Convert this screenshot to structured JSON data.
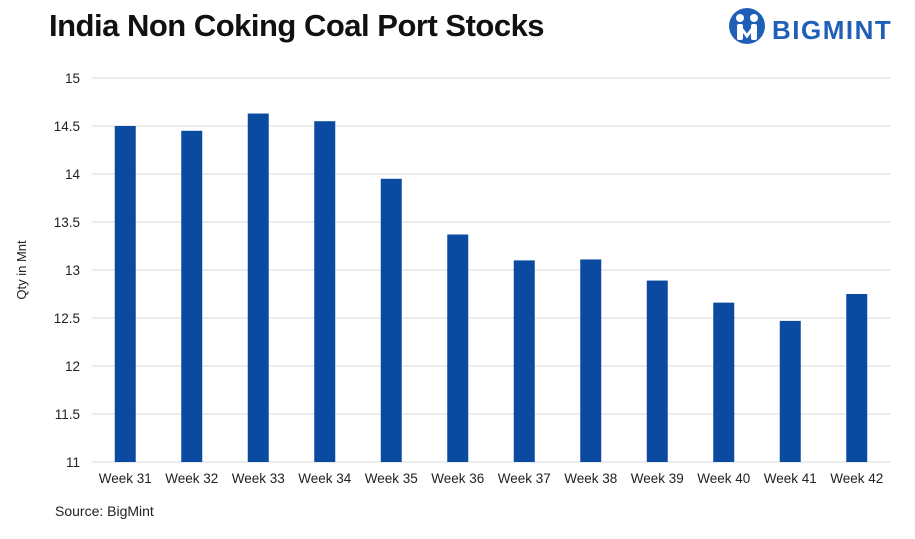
{
  "header": {
    "title": "India Non Coking Coal Port Stocks"
  },
  "logo": {
    "text": "BIGMINT",
    "icon": "bigmint-logo-icon",
    "color": "#1f5fb8"
  },
  "footer": {
    "source": "Source: BigMint"
  },
  "chart_data": {
    "type": "bar",
    "title": "India Non Coking Coal Port Stocks",
    "xlabel": "",
    "ylabel": "Qty in Mnt",
    "categories": [
      "Week 31",
      "Week 32",
      "Week 33",
      "Week 34",
      "Week 35",
      "Week 36",
      "Week 37",
      "Week 38",
      "Week 39",
      "Week 40",
      "Week 41",
      "Week 42"
    ],
    "values": [
      14.5,
      14.45,
      14.63,
      14.55,
      13.95,
      13.37,
      13.1,
      13.11,
      12.89,
      12.66,
      12.47,
      12.75
    ],
    "ylim": [
      11,
      15
    ],
    "yticks": [
      "11",
      "11.5",
      "12",
      "12.5",
      "13",
      "13.5",
      "14",
      "14.5",
      "15"
    ],
    "grid": true,
    "bar_color": "#0a4aa0",
    "grid_color": "#d9d9d9"
  }
}
